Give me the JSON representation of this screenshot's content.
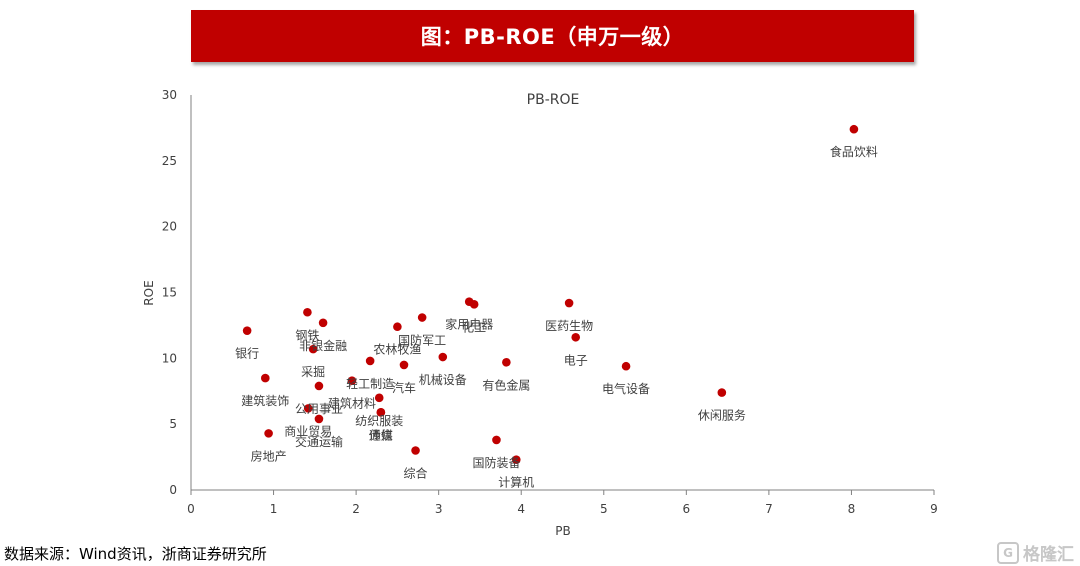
{
  "header": {
    "title": "图：PB-ROE（申万一级）"
  },
  "source_text": "数据来源：Wind资讯，浙商证券研究所",
  "watermark": {
    "text": "格隆汇",
    "glyph": "G",
    "icon": "gelonghui-logo-icon"
  },
  "colors": {
    "banner": "#c00000",
    "point": "#c00000",
    "axis": "#808080",
    "label": "#404040"
  },
  "chart_data": {
    "type": "scatter",
    "title": "PB-ROE",
    "xlabel": "PB",
    "ylabel": "ROE",
    "xlim": [
      0,
      9
    ],
    "ylim": [
      0,
      30
    ],
    "xticks": [
      0,
      1,
      2,
      3,
      4,
      5,
      6,
      7,
      8,
      9
    ],
    "yticks": [
      0,
      5,
      10,
      15,
      20,
      25,
      30
    ],
    "grid": false,
    "legend": "none",
    "points": [
      {
        "name": "食品饮料",
        "x": 8.03,
        "y": 27.4
      },
      {
        "name": "银行",
        "x": 0.68,
        "y": 12.1
      },
      {
        "name": "钢铁",
        "x": 1.41,
        "y": 13.5
      },
      {
        "name": "非银金融",
        "x": 1.6,
        "y": 12.7
      },
      {
        "name": "采掘",
        "x": 1.48,
        "y": 10.7
      },
      {
        "name": "建筑装饰",
        "x": 0.9,
        "y": 8.5
      },
      {
        "name": "公用事业",
        "x": 1.55,
        "y": 7.9
      },
      {
        "name": "商业贸易",
        "x": 1.42,
        "y": 6.2
      },
      {
        "name": "交通运输",
        "x": 1.55,
        "y": 5.4
      },
      {
        "name": "房地产",
        "x": 0.94,
        "y": 4.3
      },
      {
        "name": "建筑材料",
        "x": 1.95,
        "y": 8.3
      },
      {
        "name": "纺织服装",
        "x": 2.28,
        "y": 7.0
      },
      {
        "name": "轻工制造",
        "x": 2.17,
        "y": 9.8
      },
      {
        "name": "农林牧渔",
        "x": 2.5,
        "y": 12.4
      },
      {
        "name": "传媒",
        "x": 2.3,
        "y": 5.9
      },
      {
        "name": "通信",
        "x": 2.3,
        "y": 5.9
      },
      {
        "name": "汽车",
        "x": 2.58,
        "y": 9.5
      },
      {
        "name": "机械设备",
        "x": 3.05,
        "y": 10.1
      },
      {
        "name": "家用电器",
        "x": 3.37,
        "y": 14.3
      },
      {
        "name": "化工",
        "x": 3.43,
        "y": 14.1
      },
      {
        "name": "国防军工",
        "x": 2.8,
        "y": 13.1
      },
      {
        "name": "综合",
        "x": 2.72,
        "y": 3.0
      },
      {
        "name": "有色金属",
        "x": 3.82,
        "y": 9.7
      },
      {
        "name": "国防装备",
        "x": 3.7,
        "y": 3.8
      },
      {
        "name": "计算机",
        "x": 3.94,
        "y": 2.3
      },
      {
        "name": "医药生物",
        "x": 4.58,
        "y": 14.2
      },
      {
        "name": "电子",
        "x": 4.66,
        "y": 11.6
      },
      {
        "name": "电气设备",
        "x": 5.27,
        "y": 9.4
      },
      {
        "name": "休闲服务",
        "x": 6.43,
        "y": 7.4
      }
    ]
  }
}
